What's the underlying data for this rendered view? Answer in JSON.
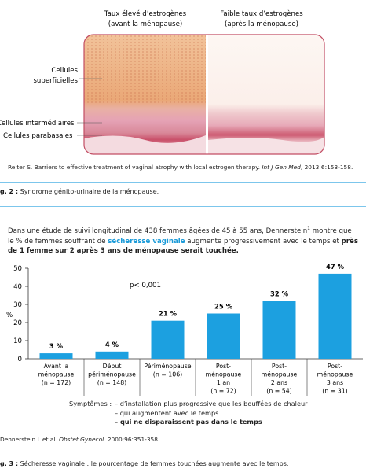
{
  "illustration": {
    "left_heading": [
      "Taux élevé d’estrogènes",
      "(avant la ménopause)"
    ],
    "right_heading": [
      "Faible taux d’estrogènes",
      "(après la ménopause)"
    ],
    "labels": [
      [
        "Cellules",
        "superficielles"
      ],
      [
        "Cellules intermédiaires"
      ],
      [
        "Cellules parabasales"
      ]
    ]
  },
  "citation_1": {
    "text": "Reiter S. Barriers to effective treatment of vaginal atrophy with local estrogen therapy. ",
    "journal": "Int J Gen Med",
    "rest": ", 2013;6:153-158."
  },
  "caption_2": {
    "label": "g. 2 :",
    "text": "Syndrome génito-urinaire de la ménopause."
  },
  "intro": {
    "part_1": "Dans une étude de suivi longitudinal de 438 femmes âgées de 45 à 55 ans, Dennerstein",
    "superscript": "1",
    "part_2": " montre que le % de femmes souffrant de ",
    "highlight": "sécheresse vaginale",
    "part_3": " augmente progressivement avec le temps et ",
    "bold": "près de 1 femme sur 2 après 3 ans de ménopause serait touchée."
  },
  "chart_data": {
    "type": "bar",
    "categories": [
      [
        "Avant la",
        "ménopause",
        "(n = 172)"
      ],
      [
        "Début",
        "périménopause",
        "(n = 148)"
      ],
      [
        "Périménopause",
        "(n = 106)"
      ],
      [
        "Post-",
        "ménopause",
        "1 an",
        "(n = 72)"
      ],
      [
        "Post-",
        "ménopause",
        "2 ans",
        "(n = 54)"
      ],
      [
        "Post-",
        "ménopause",
        "3 ans",
        "(n = 31)"
      ]
    ],
    "values": [
      3,
      4,
      21,
      25,
      32,
      47
    ],
    "value_labels": [
      "3 %",
      "4 %",
      "21 %",
      "25 %",
      "32 %",
      "47 %"
    ],
    "color": "#1ca0e0",
    "ylabel": "%",
    "annotation": "p< 0,001",
    "ylim": [
      0,
      50
    ],
    "yticks": [
      0,
      10,
      20,
      30,
      40,
      50
    ]
  },
  "symptoms": {
    "label": "Symptômes :",
    "items": [
      "– d’installation plus progressive que les bouffées de chaleur",
      "– qui augmentent avec le temps",
      "– qui ne disparaissent pas dans le temps"
    ]
  },
  "citation_2": {
    "authors": "Dennerstein L et al. ",
    "journal": "Obstet Gynecol.",
    "rest": " 2000;96:351-358."
  },
  "caption_3": {
    "label": "g. 3 :",
    "text": "Sécheresse vaginale : le pourcentage de femmes touchées augmente avec le temps."
  }
}
